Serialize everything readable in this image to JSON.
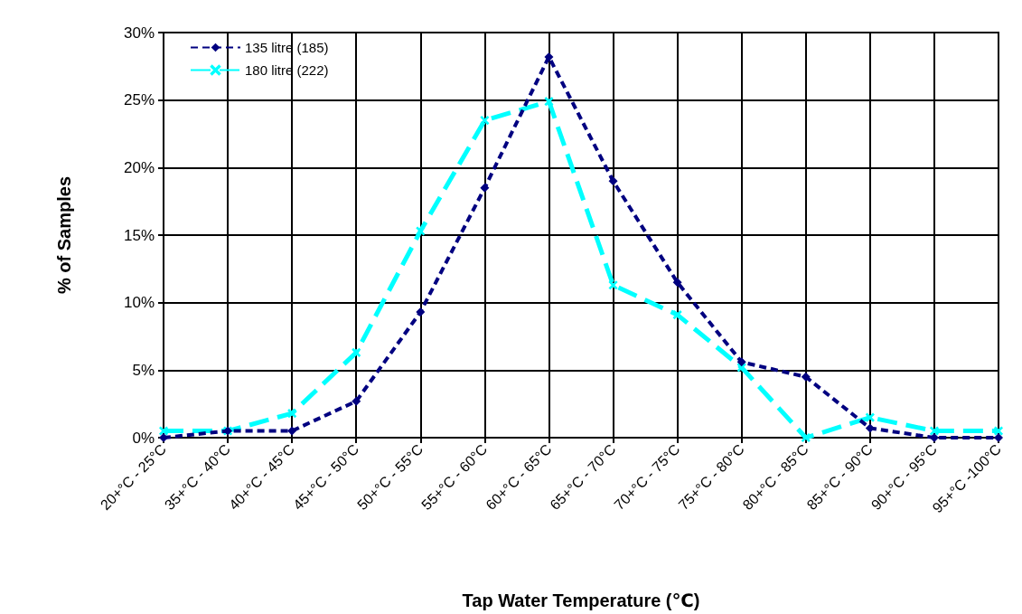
{
  "chart_data": {
    "type": "line",
    "xlabel": "Tap Water Temperature (℃)",
    "ylabel": "% of Samples",
    "categories": [
      "20+°C - 25°C",
      "35+°C - 40°C",
      "40+°C - 45°C",
      "45+°C - 50°C",
      "50+°C - 55°C",
      "55+°C - 60°C",
      "60+°C - 65°C",
      "65+°C - 70°C",
      "70+°C - 75°C",
      "75+°C - 80°C",
      "80+°C - 85°C",
      "85+°C - 90°C",
      "90+°C - 95°C",
      "95+°C -100°C"
    ],
    "series": [
      {
        "name": "135 litre (185)",
        "color": "#000080",
        "marker": "diamond",
        "values": [
          0,
          0.5,
          0.5,
          2.7,
          9.3,
          18.5,
          28.2,
          19.0,
          11.5,
          5.6,
          4.5,
          0.7,
          0,
          0
        ]
      },
      {
        "name": "180 litre (222)",
        "color": "#00ffff",
        "marker": "cross",
        "values": [
          0.5,
          0.5,
          1.8,
          6.3,
          15.3,
          23.5,
          24.9,
          11.3,
          9.1,
          5.2,
          0,
          1.5,
          0.5,
          0.5
        ]
      }
    ],
    "ylim": [
      0,
      30
    ],
    "yticks": [
      {
        "value": 0,
        "label": "0%"
      },
      {
        "value": 5,
        "label": "5%"
      },
      {
        "value": 10,
        "label": "10%"
      },
      {
        "value": 15,
        "label": "15%"
      },
      {
        "value": 20,
        "label": "20%"
      },
      {
        "value": 25,
        "label": "25%"
      },
      {
        "value": 30,
        "label": "30%"
      }
    ],
    "grid": true,
    "legend": "top left",
    "line_style": "dashed"
  }
}
